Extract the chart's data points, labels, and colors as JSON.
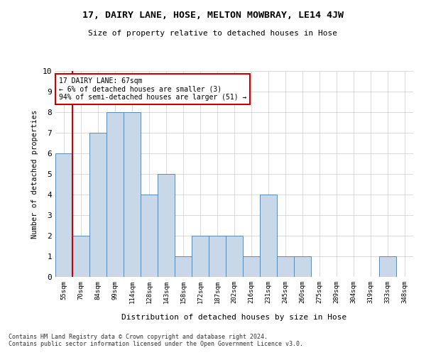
{
  "title": "17, DAIRY LANE, HOSE, MELTON MOWBRAY, LE14 4JW",
  "subtitle": "Size of property relative to detached houses in Hose",
  "xlabel": "Distribution of detached houses by size in Hose",
  "ylabel": "Number of detached properties",
  "categories": [
    "55sqm",
    "70sqm",
    "84sqm",
    "99sqm",
    "114sqm",
    "128sqm",
    "143sqm",
    "158sqm",
    "172sqm",
    "187sqm",
    "202sqm",
    "216sqm",
    "231sqm",
    "245sqm",
    "260sqm",
    "275sqm",
    "289sqm",
    "304sqm",
    "319sqm",
    "333sqm",
    "348sqm"
  ],
  "values": [
    6,
    2,
    7,
    8,
    8,
    4,
    5,
    1,
    2,
    2,
    2,
    1,
    4,
    1,
    1,
    0,
    0,
    0,
    0,
    1,
    0
  ],
  "bar_color": "#c8d8e8",
  "bar_edge_color": "#5a8ab5",
  "grid_color": "#cccccc",
  "background_color": "#ffffff",
  "annotation_line1": "17 DAIRY LANE: 67sqm",
  "annotation_line2": "← 6% of detached houses are smaller (3)",
  "annotation_line3": "94% of semi-detached houses are larger (51) →",
  "annotation_box_color": "#ffffff",
  "annotation_box_edge_color": "#cc0000",
  "red_line_index": 1,
  "ylim": [
    0,
    10
  ],
  "yticks": [
    0,
    1,
    2,
    3,
    4,
    5,
    6,
    7,
    8,
    9,
    10
  ],
  "footer_line1": "Contains HM Land Registry data © Crown copyright and database right 2024.",
  "footer_line2": "Contains public sector information licensed under the Open Government Licence v3.0."
}
